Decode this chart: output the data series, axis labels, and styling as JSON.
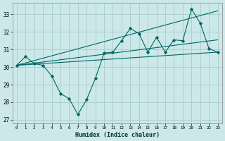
{
  "xlabel": "Humidex (Indice chaleur)",
  "bg_color": "#cce8e8",
  "grid_color": "#a8cccc",
  "line_color": "#006666",
  "xlim": [
    -0.5,
    23.5
  ],
  "ylim": [
    26.8,
    33.65
  ],
  "yticks": [
    27,
    28,
    29,
    30,
    31,
    32,
    33
  ],
  "xticks": [
    0,
    1,
    2,
    3,
    4,
    5,
    6,
    7,
    8,
    9,
    10,
    11,
    12,
    13,
    14,
    15,
    16,
    17,
    18,
    19,
    20,
    21,
    22,
    23
  ],
  "main_x": [
    0,
    1,
    2,
    3,
    4,
    5,
    6,
    7,
    8,
    9,
    10,
    11,
    12,
    13,
    14,
    15,
    16,
    17,
    18,
    19,
    20,
    21,
    22,
    23
  ],
  "main_y": [
    30.1,
    30.6,
    30.2,
    30.1,
    29.5,
    28.5,
    28.2,
    27.3,
    28.15,
    29.35,
    30.8,
    30.85,
    31.5,
    32.2,
    31.9,
    30.85,
    31.7,
    30.85,
    31.55,
    31.5,
    33.3,
    32.5,
    31.05,
    30.85
  ],
  "trend_lines": [
    {
      "x": [
        0,
        23
      ],
      "y": [
        30.1,
        33.2
      ]
    },
    {
      "x": [
        0,
        23
      ],
      "y": [
        30.1,
        31.55
      ]
    },
    {
      "x": [
        0,
        23
      ],
      "y": [
        30.1,
        30.85
      ]
    }
  ]
}
